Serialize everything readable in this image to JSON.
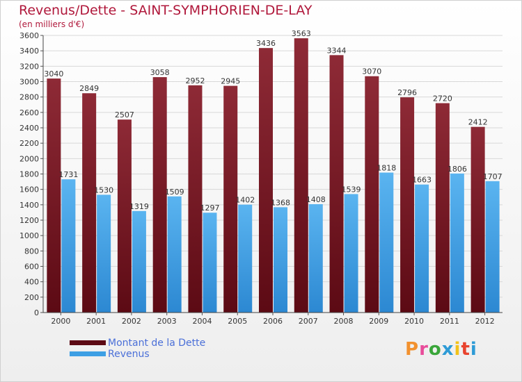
{
  "header": {
    "title": "Revenus/Dette - SAINT-SYMPHORIEN-DE-LAY",
    "subtitle": "(en milliers d'€)"
  },
  "colors": {
    "title": "#b0183b",
    "debt_bar": "#7a1e2b",
    "revenue_bar": "#3d9fe4",
    "grid": "#d8d8d8",
    "legend_text": "#4a6fd8"
  },
  "legend": {
    "items": [
      {
        "label": "Montant de la Dette",
        "color": "#5c0a14"
      },
      {
        "label": "Revenus",
        "color": "#3d9fe4"
      }
    ]
  },
  "logo": {
    "text": "Proxiti",
    "letter_colors": [
      "#f2912e",
      "#e84c9a",
      "#3aa63a",
      "#2e9bd6",
      "#f2c21a",
      "#e8432e",
      "#2e9bd6"
    ]
  },
  "chart_data": {
    "type": "bar",
    "categories": [
      "2000",
      "2001",
      "2002",
      "2003",
      "2004",
      "2005",
      "2006",
      "2007",
      "2008",
      "2009",
      "2010",
      "2011",
      "2012"
    ],
    "series": [
      {
        "name": "Montant de la Dette",
        "values": [
          3040,
          2849,
          2507,
          3058,
          2952,
          2945,
          3436,
          3563,
          3344,
          3070,
          2796,
          2720,
          2412
        ]
      },
      {
        "name": "Revenus",
        "values": [
          1731,
          1530,
          1319,
          1509,
          1297,
          1402,
          1368,
          1408,
          1539,
          1818,
          1663,
          1806,
          1707
        ]
      }
    ],
    "ylim": [
      0,
      3600
    ],
    "yticks": [
      0,
      200,
      400,
      600,
      800,
      1000,
      1200,
      1400,
      1600,
      1800,
      2000,
      2200,
      2400,
      2600,
      2800,
      3000,
      3200,
      3400,
      3600
    ],
    "grid": true,
    "legend_position": "bottom-left"
  }
}
